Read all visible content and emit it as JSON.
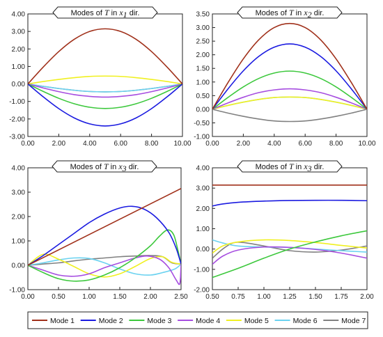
{
  "legend": [
    {
      "label": "Mode 1",
      "color": "#a0301a"
    },
    {
      "label": "Mode 2",
      "color": "#1a1ae0"
    },
    {
      "label": "Mode 3",
      "color": "#3cc83c"
    },
    {
      "label": "Mode 4",
      "color": "#a64de0"
    },
    {
      "label": "Mode 5",
      "color": "#f0f020"
    },
    {
      "label": "Mode 6",
      "color": "#6ad2f0"
    },
    {
      "label": "Mode 7",
      "color": "#808080"
    }
  ],
  "chart_data": [
    {
      "type": "line",
      "title": {
        "prefix": "Modes of ",
        "var": "T",
        "mid": " in ",
        "axis": "x",
        "sub": "1",
        "suffix": " dir."
      },
      "xlim": [
        0,
        10
      ],
      "ylim": [
        -3,
        4
      ],
      "xticks": [
        0,
        2,
        4,
        6,
        8,
        10
      ],
      "yticks": [
        -3,
        -2,
        -1,
        0,
        1,
        2,
        3,
        4
      ],
      "xtick_labels": [
        "0.00",
        "2.00",
        "4.00",
        "6.00",
        "8.00",
        "10.00"
      ],
      "ytick_labels": [
        "-3.00",
        "-2.00",
        "-1.00",
        "0.00",
        "1.00",
        "2.00",
        "3.00",
        "4.00"
      ],
      "x": [
        0,
        1,
        2,
        3,
        4,
        5,
        6,
        7,
        8,
        9,
        10
      ],
      "series": [
        {
          "name": "Mode 1",
          "values": [
            0,
            0.97,
            1.85,
            2.55,
            3.0,
            3.15,
            3.0,
            2.55,
            1.85,
            0.97,
            0
          ]
        },
        {
          "name": "Mode 2",
          "values": [
            0,
            -0.74,
            -1.41,
            -1.94,
            -2.28,
            -2.4,
            -2.28,
            -1.94,
            -1.41,
            -0.74,
            0
          ]
        },
        {
          "name": "Mode 3",
          "values": [
            0,
            -0.43,
            -0.82,
            -1.13,
            -1.33,
            -1.4,
            -1.33,
            -1.13,
            -0.82,
            -0.43,
            0
          ]
        },
        {
          "name": "Mode 4",
          "values": [
            0,
            -0.23,
            -0.44,
            -0.61,
            -0.71,
            -0.75,
            -0.71,
            -0.61,
            -0.44,
            -0.23,
            0
          ]
        },
        {
          "name": "Mode 5",
          "values": [
            0,
            0.14,
            0.26,
            0.36,
            0.43,
            0.45,
            0.43,
            0.36,
            0.26,
            0.14,
            0
          ]
        },
        {
          "name": "Mode 6",
          "values": [
            0,
            -0.14,
            -0.26,
            -0.36,
            -0.43,
            -0.45,
            -0.43,
            -0.36,
            -0.26,
            -0.14,
            0
          ]
        },
        {
          "name": "Mode 7",
          "values": [
            0,
            -0.14,
            -0.26,
            -0.36,
            -0.43,
            -0.45,
            -0.43,
            -0.36,
            -0.26,
            -0.14,
            0
          ]
        }
      ]
    },
    {
      "type": "line",
      "title": {
        "prefix": "Modes of ",
        "var": "T",
        "mid": " in ",
        "axis": "x",
        "sub": "2",
        "suffix": " dir."
      },
      "xlim": [
        0,
        10
      ],
      "ylim": [
        -1,
        3.5
      ],
      "xticks": [
        0,
        2,
        4,
        6,
        8,
        10
      ],
      "yticks": [
        -1,
        -0.5,
        0,
        0.5,
        1,
        1.5,
        2,
        2.5,
        3,
        3.5
      ],
      "xtick_labels": [
        "0.00",
        "2.00",
        "4.00",
        "6.00",
        "8.00",
        "10.00"
      ],
      "ytick_labels": [
        "-1.00",
        "-0.50",
        "0.00",
        "0.50",
        "1.00",
        "1.50",
        "2.00",
        "2.50",
        "3.00",
        "3.50"
      ],
      "x": [
        0,
        1,
        2,
        3,
        4,
        5,
        6,
        7,
        8,
        9,
        10
      ],
      "series": [
        {
          "name": "Mode 1",
          "values": [
            0,
            0.97,
            1.85,
            2.55,
            3.0,
            3.15,
            3.0,
            2.55,
            1.85,
            0.97,
            0
          ]
        },
        {
          "name": "Mode 2",
          "values": [
            0,
            0.74,
            1.41,
            1.94,
            2.28,
            2.4,
            2.28,
            1.94,
            1.41,
            0.74,
            0
          ]
        },
        {
          "name": "Mode 3",
          "values": [
            0,
            0.43,
            0.82,
            1.13,
            1.33,
            1.4,
            1.33,
            1.13,
            0.82,
            0.43,
            0
          ]
        },
        {
          "name": "Mode 4",
          "values": [
            0,
            0.23,
            0.44,
            0.61,
            0.71,
            0.75,
            0.71,
            0.61,
            0.44,
            0.23,
            0
          ]
        },
        {
          "name": "Mode 5",
          "values": [
            0,
            0.14,
            0.26,
            0.36,
            0.43,
            0.45,
            0.43,
            0.36,
            0.26,
            0.14,
            0
          ]
        },
        {
          "name": "Mode 6",
          "values": [
            0,
            0.14,
            0.26,
            0.36,
            0.43,
            0.45,
            0.43,
            0.36,
            0.26,
            0.14,
            0
          ]
        },
        {
          "name": "Mode 7",
          "values": [
            0,
            -0.14,
            -0.26,
            -0.36,
            -0.43,
            -0.45,
            -0.43,
            -0.36,
            -0.26,
            -0.14,
            0
          ]
        }
      ]
    },
    {
      "type": "line",
      "title": {
        "prefix": "Modes of ",
        "var": "T",
        "mid": " in ",
        "axis": "x",
        "sub": "3",
        "suffix": " dir."
      },
      "xlim": [
        0,
        2.5
      ],
      "ylim": [
        -1,
        4
      ],
      "xticks": [
        0,
        0.5,
        1,
        1.5,
        2,
        2.5
      ],
      "yticks": [
        -1,
        0,
        1,
        2,
        3,
        4
      ],
      "xtick_labels": [
        "0.00",
        "0.50",
        "1.00",
        "1.50",
        "2.00",
        "2.50"
      ],
      "ytick_labels": [
        "-1.00",
        "0.00",
        "1.00",
        "2.00",
        "3.00",
        "4.00"
      ],
      "series": [
        {
          "name": "Mode 1",
          "x": [
            0,
            2.5
          ],
          "values": [
            0,
            3.15
          ]
        },
        {
          "name": "Mode 2",
          "x": [
            0,
            0.25,
            0.5,
            0.75,
            1.0,
            1.25,
            1.5,
            1.7,
            1.9,
            2.1,
            2.3,
            2.42,
            2.5
          ],
          "values": [
            0,
            0.4,
            0.85,
            1.3,
            1.75,
            2.1,
            2.35,
            2.42,
            2.3,
            1.95,
            1.35,
            0.7,
            0.05
          ]
        },
        {
          "name": "Mode 3",
          "x": [
            0,
            0.25,
            0.5,
            0.75,
            1.0,
            1.25,
            1.5,
            1.75,
            2.0,
            2.15,
            2.28,
            2.38,
            2.45,
            2.5
          ],
          "values": [
            0,
            -0.3,
            -0.55,
            -0.65,
            -0.6,
            -0.4,
            -0.1,
            0.3,
            0.8,
            1.2,
            1.45,
            1.25,
            0.6,
            0.05
          ]
        },
        {
          "name": "Mode 4",
          "x": [
            0,
            0.25,
            0.5,
            0.75,
            1.0,
            1.25,
            1.5,
            1.75,
            1.95,
            2.15,
            2.3,
            2.42,
            2.48,
            2.5
          ],
          "values": [
            0,
            -0.2,
            -0.4,
            -0.45,
            -0.35,
            -0.1,
            0.1,
            0.3,
            0.38,
            0.25,
            -0.1,
            -0.6,
            -0.75,
            0.05
          ]
        },
        {
          "name": "Mode 5",
          "x": [
            0,
            0.25,
            0.5,
            0.75,
            1.0,
            1.25,
            1.5,
            1.75,
            2.0,
            2.2,
            2.35,
            2.5
          ],
          "values": [
            0,
            0.45,
            0.25,
            -0.05,
            -0.35,
            -0.48,
            -0.35,
            -0.05,
            0.28,
            0.35,
            0.12,
            0.05
          ]
        },
        {
          "name": "Mode 6",
          "x": [
            0,
            0.25,
            0.5,
            0.75,
            1.0,
            1.25,
            1.5,
            1.75,
            2.0,
            2.2,
            2.4,
            2.5
          ],
          "values": [
            0,
            0.1,
            0.22,
            0.3,
            0.28,
            0.1,
            -0.15,
            -0.35,
            -0.4,
            -0.3,
            -0.15,
            0.05
          ]
        },
        {
          "name": "Mode 7",
          "x": [
            0,
            0.25,
            0.5,
            0.75,
            1.0,
            1.25,
            1.5,
            1.75,
            2.0,
            2.2,
            2.35,
            2.5
          ],
          "values": [
            0,
            0.05,
            0.1,
            0.18,
            0.25,
            0.3,
            0.35,
            0.38,
            0.4,
            0.35,
            0.1,
            0.05
          ]
        }
      ]
    },
    {
      "type": "line",
      "title": {
        "prefix": "Modes of ",
        "var": "T",
        "mid": " in ",
        "axis": "x",
        "sub": "3",
        "suffix": " dir."
      },
      "xlim": [
        0.5,
        2.0
      ],
      "ylim": [
        -2,
        4
      ],
      "xticks": [
        0.5,
        0.75,
        1,
        1.25,
        1.5,
        1.75,
        2
      ],
      "yticks": [
        -2,
        -1,
        0,
        1,
        2,
        3,
        4
      ],
      "xtick_labels": [
        "0.50",
        "0.75",
        "1.00",
        "1.25",
        "1.50",
        "1.75",
        "2.00"
      ],
      "ytick_labels": [
        "-2.00",
        "-1.00",
        "0.00",
        "1.00",
        "2.00",
        "3.00",
        "4.00"
      ],
      "series": [
        {
          "name": "Mode 1",
          "x": [
            0.5,
            2.0
          ],
          "values": [
            3.15,
            3.15
          ]
        },
        {
          "name": "Mode 2",
          "x": [
            0.5,
            0.6,
            0.75,
            1.0,
            1.25,
            1.5,
            1.75,
            2.0
          ],
          "values": [
            2.12,
            2.22,
            2.3,
            2.36,
            2.39,
            2.4,
            2.4,
            2.38
          ]
        },
        {
          "name": "Mode 3",
          "x": [
            0.5,
            0.75,
            1.0,
            1.25,
            1.5,
            1.75,
            2.0
          ],
          "values": [
            -1.4,
            -0.95,
            -0.45,
            0.0,
            0.35,
            0.65,
            0.9
          ]
        },
        {
          "name": "Mode 4",
          "x": [
            0.5,
            0.6,
            0.75,
            1.0,
            1.25,
            1.5,
            1.75,
            2.0
          ],
          "values": [
            -0.75,
            -0.35,
            -0.05,
            0.1,
            0.08,
            -0.02,
            -0.2,
            -0.45
          ]
        },
        {
          "name": "Mode 5",
          "x": [
            0.5,
            0.6,
            0.75,
            1.0,
            1.25,
            1.5,
            1.75,
            2.0
          ],
          "values": [
            -0.2,
            0.15,
            0.35,
            0.45,
            0.42,
            0.32,
            0.18,
            0.05
          ]
        },
        {
          "name": "Mode 6",
          "x": [
            0.5,
            0.6,
            0.75,
            1.0,
            1.25,
            1.5,
            1.75,
            2.0
          ],
          "values": [
            0.45,
            0.3,
            0.15,
            0.1,
            0.08,
            0.0,
            -0.08,
            -0.15
          ]
        },
        {
          "name": "Mode 7",
          "x": [
            0.5,
            0.6,
            0.7,
            0.8,
            1.0,
            1.25,
            1.5,
            1.75,
            2.0
          ],
          "values": [
            -0.45,
            0.0,
            0.3,
            0.32,
            0.15,
            -0.08,
            -0.15,
            -0.05,
            0.15
          ]
        }
      ]
    }
  ]
}
